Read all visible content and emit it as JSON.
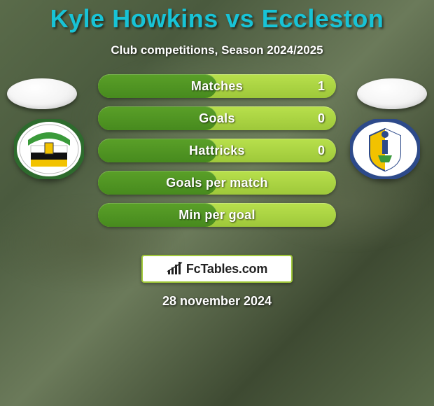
{
  "title": "Kyle Howkins vs Eccleston",
  "subtitle": "Club competitions, Season 2024/2025",
  "date": "28 november 2024",
  "colors": {
    "title": "#18c3d6",
    "text_white": "#ffffff",
    "bar_track_top": "#b8e04c",
    "bar_track_bottom": "#9ec83a",
    "bar_fill_top": "#5aa028",
    "bar_fill_bottom": "#478a1e",
    "brand_border": "#a0c83a",
    "brand_bg": "#ffffff",
    "brand_text": "#222222"
  },
  "stats": [
    {
      "label": "Matches",
      "left_pct": 50,
      "right_val": "1"
    },
    {
      "label": "Goals",
      "left_pct": 50,
      "right_val": "0"
    },
    {
      "label": "Hattricks",
      "left_pct": 50,
      "right_val": "0"
    },
    {
      "label": "Goals per match",
      "left_pct": 50,
      "right_val": ""
    },
    {
      "label": "Min per goal",
      "left_pct": 50,
      "right_val": ""
    }
  ],
  "brand": "FcTables.com",
  "crest_left": {
    "ring_color": "#2d6b2d",
    "band_colors": [
      "#ffffff",
      "#111111",
      "#f2c200"
    ],
    "top_color": "#3a9a3a"
  },
  "crest_right": {
    "ring_color": "#2d4a8a",
    "shield_colors": [
      "#f2c200",
      "#ffffff"
    ],
    "accent": "#2d4a8a"
  }
}
